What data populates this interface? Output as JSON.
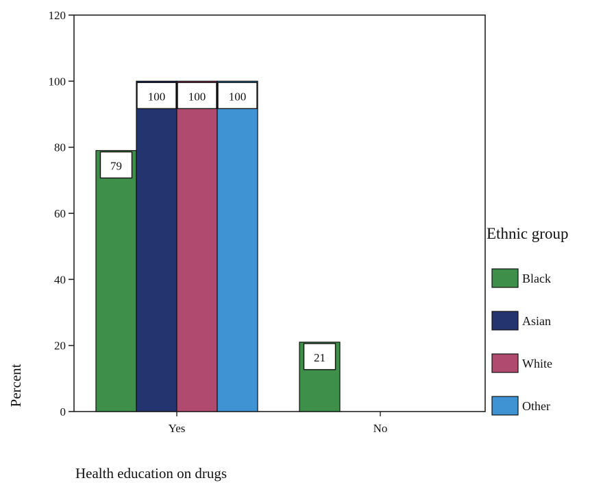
{
  "chart_data": {
    "type": "bar",
    "categories": [
      "Yes",
      "No"
    ],
    "series": [
      {
        "name": "Black",
        "values": [
          79,
          21
        ],
        "color": "#3e8f4a"
      },
      {
        "name": "Asian",
        "values": [
          100,
          0
        ],
        "color": "#23346f"
      },
      {
        "name": "White",
        "values": [
          100,
          0
        ],
        "color": "#b04a6f"
      },
      {
        "name": "Other",
        "values": [
          100,
          0
        ],
        "color": "#3f93d2"
      }
    ],
    "xlabel": "Health education on drugs",
    "ylabel": "Percent",
    "ylim": [
      0,
      120
    ],
    "yticks": [
      0,
      20,
      40,
      60,
      80,
      100,
      120
    ],
    "legend_title": "Ethnic group",
    "legend_position": "right",
    "grid": false
  }
}
